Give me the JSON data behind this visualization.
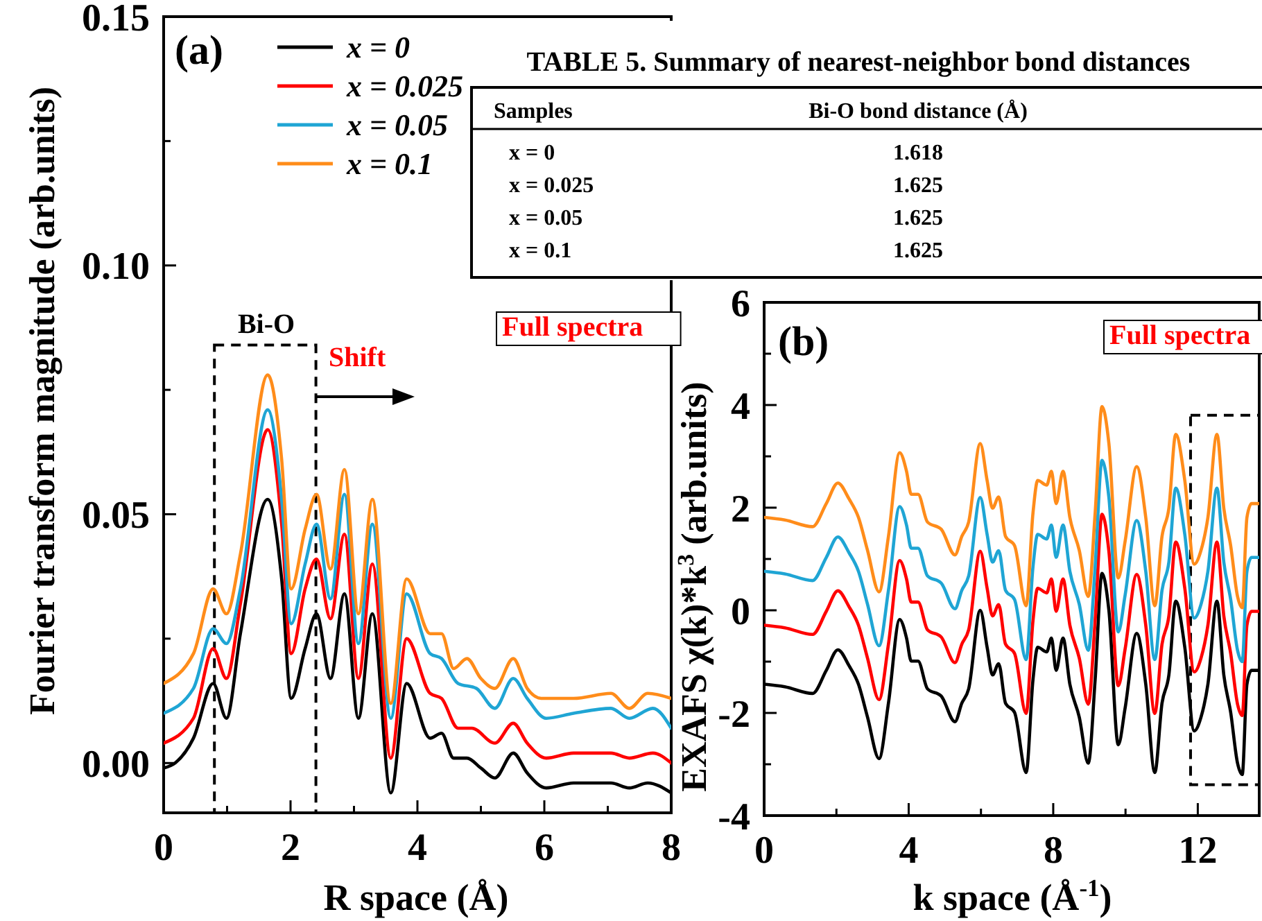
{
  "chart_data": [
    {
      "type": "line",
      "xlabel": "R space (Å)",
      "ylabel": "Fourier transform magnitude (arb.units)",
      "xlim": [
        0,
        8
      ],
      "ylim": [
        -0.01,
        0.15
      ],
      "xticks": [
        0,
        {
          "value": 1,
          "label": null
        },
        2,
        {
          "value": 3,
          "label": null
        },
        4,
        {
          "value": 5,
          "label": null
        },
        6,
        {
          "value": 7,
          "label": null
        },
        8
      ],
      "yticks": [
        {
          "value": 0,
          "label": "0.00"
        },
        {
          "value": 0.025,
          "label": null
        },
        0.05,
        {
          "value": 0.075,
          "label": null
        },
        {
          "value": 0.1,
          "label": "0.10"
        },
        {
          "value": 0.125,
          "label": null
        },
        0.15
      ],
      "legend": "top left",
      "grid": false,
      "line_style": "solid",
      "annotations": [
        "(a)",
        "Bi-O",
        "Shift",
        "Full spectra"
      ],
      "series": [
        {
          "name": "x = 0",
          "color": "#000000",
          "x": [
            0,
            0.18,
            0.47,
            0.78,
            0.99,
            1.21,
            1.64,
            1.86,
            2.01,
            2.23,
            2.41,
            2.63,
            2.85,
            3.07,
            3.29,
            3.58,
            3.83,
            4.2,
            4.38,
            4.57,
            4.78,
            5.0,
            5.22,
            5.51,
            5.73,
            6.03,
            6.46,
            7.05,
            7.34,
            7.63,
            8.0
          ],
          "values": [
            -0.001,
            0,
            0.005,
            0.016,
            0.009,
            0.026,
            0.053,
            0.037,
            0.013,
            0.023,
            0.03,
            0.017,
            0.034,
            0.009,
            0.03,
            -0.006,
            0.016,
            0.005,
            0.006,
            0.001,
            0.001,
            -0.001,
            -0.003,
            0.002,
            -0.002,
            -0.005,
            -0.004,
            -0.004,
            -0.005,
            -0.004,
            -0.006
          ]
        },
        {
          "name": "x = 0.025",
          "color": "#ff0000",
          "x": [
            0,
            0.47,
            0.78,
            0.99,
            1.21,
            1.64,
            1.86,
            2.01,
            2.23,
            2.41,
            2.63,
            2.85,
            3.07,
            3.29,
            3.58,
            3.83,
            4.2,
            4.38,
            4.64,
            4.86,
            5.22,
            5.51,
            5.73,
            6.03,
            6.46,
            7.05,
            7.34,
            7.71,
            8.0
          ],
          "values": [
            0.004,
            0.009,
            0.023,
            0.017,
            0.032,
            0.067,
            0.048,
            0.022,
            0.035,
            0.041,
            0.029,
            0.046,
            0.017,
            0.04,
            0.001,
            0.025,
            0.014,
            0.013,
            0.007,
            0.007,
            0.004,
            0.008,
            0.004,
            0.001,
            0.002,
            0.002,
            0.001,
            0.002,
            0.0
          ]
        },
        {
          "name": "x = 0.05",
          "color": "#1fa5d4",
          "x": [
            0,
            0.47,
            0.78,
            0.99,
            1.21,
            1.64,
            1.86,
            2.01,
            2.23,
            2.41,
            2.63,
            2.85,
            3.07,
            3.29,
            3.58,
            3.83,
            4.2,
            4.38,
            4.64,
            4.93,
            5.22,
            5.51,
            5.73,
            6.03,
            6.46,
            7.05,
            7.34,
            7.71,
            8.0
          ],
          "values": [
            0.01,
            0.015,
            0.027,
            0.024,
            0.035,
            0.071,
            0.053,
            0.028,
            0.04,
            0.048,
            0.033,
            0.054,
            0.024,
            0.048,
            0.009,
            0.034,
            0.022,
            0.021,
            0.016,
            0.015,
            0.011,
            0.017,
            0.013,
            0.009,
            0.01,
            0.011,
            0.009,
            0.011,
            0.007
          ]
        },
        {
          "name": "x = 0.1",
          "color": "#ff8c1a",
          "x": [
            0,
            0.47,
            0.78,
            0.99,
            1.21,
            1.64,
            1.86,
            2.01,
            2.23,
            2.41,
            2.63,
            2.85,
            3.07,
            3.29,
            3.58,
            3.83,
            4.2,
            4.38,
            4.57,
            4.78,
            5.0,
            5.22,
            5.51,
            5.73,
            5.95,
            6.46,
            7.05,
            7.34,
            7.63,
            8.0
          ],
          "values": [
            0.016,
            0.022,
            0.035,
            0.03,
            0.042,
            0.078,
            0.061,
            0.035,
            0.047,
            0.054,
            0.039,
            0.059,
            0.03,
            0.053,
            0.012,
            0.037,
            0.026,
            0.026,
            0.019,
            0.021,
            0.017,
            0.015,
            0.021,
            0.015,
            0.013,
            0.013,
            0.014,
            0.011,
            0.014,
            0.013
          ]
        }
      ]
    },
    {
      "type": "other",
      "title": "TABLE 5. Summary of nearest-neighbor bond distances",
      "xlabel": "Samples",
      "ylabel": "Bi-O bond distance (Å)",
      "categories": [
        "x = 0",
        "x = 0.025",
        "x = 0.05",
        "x = 0.1"
      ],
      "values": [
        1.618,
        1.625,
        1.625,
        1.625
      ],
      "data_labels": true
    },
    {
      "type": "line",
      "xlabel": "k space (Å$^{-1}$)",
      "ylabel": "EXAFS χ(k)*k$^{3}$ (arb.units)",
      "xlim": [
        0,
        13.7
      ],
      "ylim": [
        -4,
        6
      ],
      "xticks": [
        0,
        {
          "value": 2,
          "label": null
        },
        4,
        {
          "value": 6,
          "label": null
        },
        8,
        {
          "value": 10,
          "label": null
        },
        12
      ],
      "yticks": [
        -4,
        {
          "value": -3,
          "label": null
        },
        -2,
        {
          "value": -1,
          "label": null
        },
        0,
        {
          "value": 1,
          "label": null
        },
        2,
        {
          "value": 3,
          "label": null
        },
        4,
        {
          "value": 5,
          "label": null
        },
        6
      ],
      "grid": false,
      "line_style": "solid",
      "annotations": [
        "(b)",
        "Full spectra"
      ],
      "x": [
        0,
        0.57,
        1.34,
        1.72,
        2.04,
        2.35,
        2.61,
        2.86,
        3.18,
        3.44,
        3.75,
        3.94,
        4.07,
        4.26,
        4.52,
        4.9,
        5.28,
        5.47,
        5.66,
        5.98,
        6.17,
        6.32,
        6.49,
        6.68,
        6.93,
        7.25,
        7.44,
        7.57,
        7.82,
        7.95,
        8.08,
        8.27,
        8.46,
        8.72,
        8.97,
        9.16,
        9.35,
        9.54,
        9.8,
        9.99,
        10.31,
        10.56,
        10.81,
        11.01,
        11.2,
        11.39,
        11.64,
        11.9,
        12.09,
        12.28,
        12.53,
        12.72,
        12.91,
        13.1,
        13.23,
        13.36,
        13.49,
        13.68
      ],
      "series": [
        {
          "color": "#000000",
          "values": [
            -1.44,
            -1.49,
            -1.62,
            -1.17,
            -0.77,
            -1.08,
            -1.44,
            -2.08,
            -2.89,
            -1.81,
            -0.18,
            -0.54,
            -0.99,
            -0.99,
            -1.53,
            -1.67,
            -2.17,
            -1.81,
            -1.53,
            0.0,
            -0.72,
            -1.26,
            -1.04,
            -1.81,
            -1.99,
            -3.16,
            -1.35,
            -0.72,
            -0.81,
            -0.54,
            -1.17,
            -0.54,
            -1.44,
            -2.08,
            -2.98,
            -1.35,
            0.72,
            0.0,
            -2.62,
            -1.9,
            -0.45,
            -1.44,
            -3.16,
            -1.81,
            -1.26,
            0.18,
            -0.72,
            -2.35,
            -2.08,
            -1.44,
            0.18,
            -1.26,
            -1.99,
            -2.98,
            -3.2,
            -1.44,
            -1.17,
            -1.17
          ]
        },
        {
          "color": "#ff0000",
          "values": [
            -0.29,
            -0.34,
            -0.47,
            -0.02,
            0.38,
            0.07,
            -0.29,
            -0.93,
            -1.74,
            -0.66,
            0.97,
            0.61,
            0.16,
            0.16,
            -0.38,
            -0.52,
            -1.02,
            -0.66,
            -0.38,
            1.15,
            0.43,
            -0.11,
            0.11,
            -0.66,
            -0.84,
            -2.01,
            -0.2,
            0.43,
            0.34,
            0.61,
            -0.02,
            0.61,
            -0.29,
            -0.93,
            -1.83,
            -0.2,
            1.87,
            1.15,
            -1.47,
            -0.75,
            0.7,
            -0.29,
            -2.01,
            -0.66,
            -0.11,
            1.33,
            0.43,
            -1.2,
            -0.93,
            -0.29,
            1.33,
            -0.11,
            -0.84,
            -1.83,
            -2.05,
            -0.29,
            -0.02,
            -0.02
          ]
        },
        {
          "color": "#1fa5d4",
          "values": [
            0.76,
            0.71,
            0.58,
            1.03,
            1.43,
            1.12,
            0.76,
            0.12,
            -0.69,
            0.39,
            2.02,
            1.66,
            1.21,
            1.21,
            0.67,
            0.53,
            0.03,
            0.39,
            0.67,
            2.2,
            1.48,
            0.94,
            1.16,
            0.39,
            0.21,
            -0.96,
            0.85,
            1.48,
            1.39,
            1.66,
            1.03,
            1.66,
            0.76,
            0.12,
            -0.78,
            0.85,
            2.92,
            2.2,
            -0.42,
            0.3,
            1.75,
            0.76,
            -0.96,
            0.39,
            0.94,
            2.38,
            1.48,
            -0.15,
            0.12,
            0.76,
            2.38,
            0.94,
            0.21,
            -0.78,
            -1.0,
            0.76,
            1.03,
            1.03
          ]
        },
        {
          "color": "#ff8c1a",
          "values": [
            1.81,
            1.76,
            1.63,
            2.08,
            2.48,
            2.17,
            1.81,
            1.17,
            0.36,
            1.44,
            3.07,
            2.71,
            2.26,
            2.26,
            1.72,
            1.58,
            1.08,
            1.44,
            1.72,
            3.25,
            2.53,
            1.99,
            2.21,
            1.44,
            1.26,
            0.09,
            1.9,
            2.53,
            2.44,
            2.71,
            2.08,
            2.71,
            1.81,
            1.17,
            0.27,
            1.9,
            3.97,
            3.25,
            0.63,
            1.35,
            2.8,
            1.81,
            0.09,
            1.44,
            1.99,
            3.43,
            2.53,
            0.9,
            1.17,
            1.81,
            3.43,
            1.99,
            1.26,
            0.27,
            0.05,
            1.81,
            2.08,
            2.08
          ]
        }
      ]
    }
  ]
}
